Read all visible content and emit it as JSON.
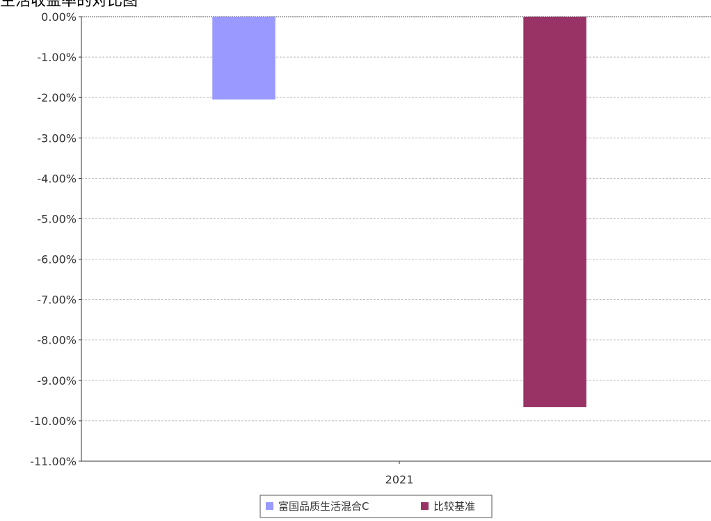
{
  "page_title_fragment": "生活收益率的对比图",
  "chart_data": {
    "type": "bar",
    "title": "",
    "xlabel": "",
    "ylabel": "",
    "categories": [
      "2021"
    ],
    "series": [
      {
        "name": "富国品质生活混合C",
        "values": [
          -2.05
        ],
        "color": "#9999ff"
      },
      {
        "name": "比较基准",
        "values": [
          -9.66
        ],
        "color": "#993366"
      }
    ],
    "ylim": [
      -11,
      0
    ],
    "y_ticks": [
      0,
      -1,
      -2,
      -3,
      -4,
      -5,
      -6,
      -7,
      -8,
      -9,
      -10,
      -11
    ],
    "y_tick_labels": [
      "0.00%",
      "-1.00%",
      "-2.00%",
      "-3.00%",
      "-4.00%",
      "-5.00%",
      "-6.00%",
      "-7.00%",
      "-8.00%",
      "-9.00%",
      "-10.00%",
      "-11.00%"
    ],
    "grid": true,
    "legend": "bottom-center"
  }
}
